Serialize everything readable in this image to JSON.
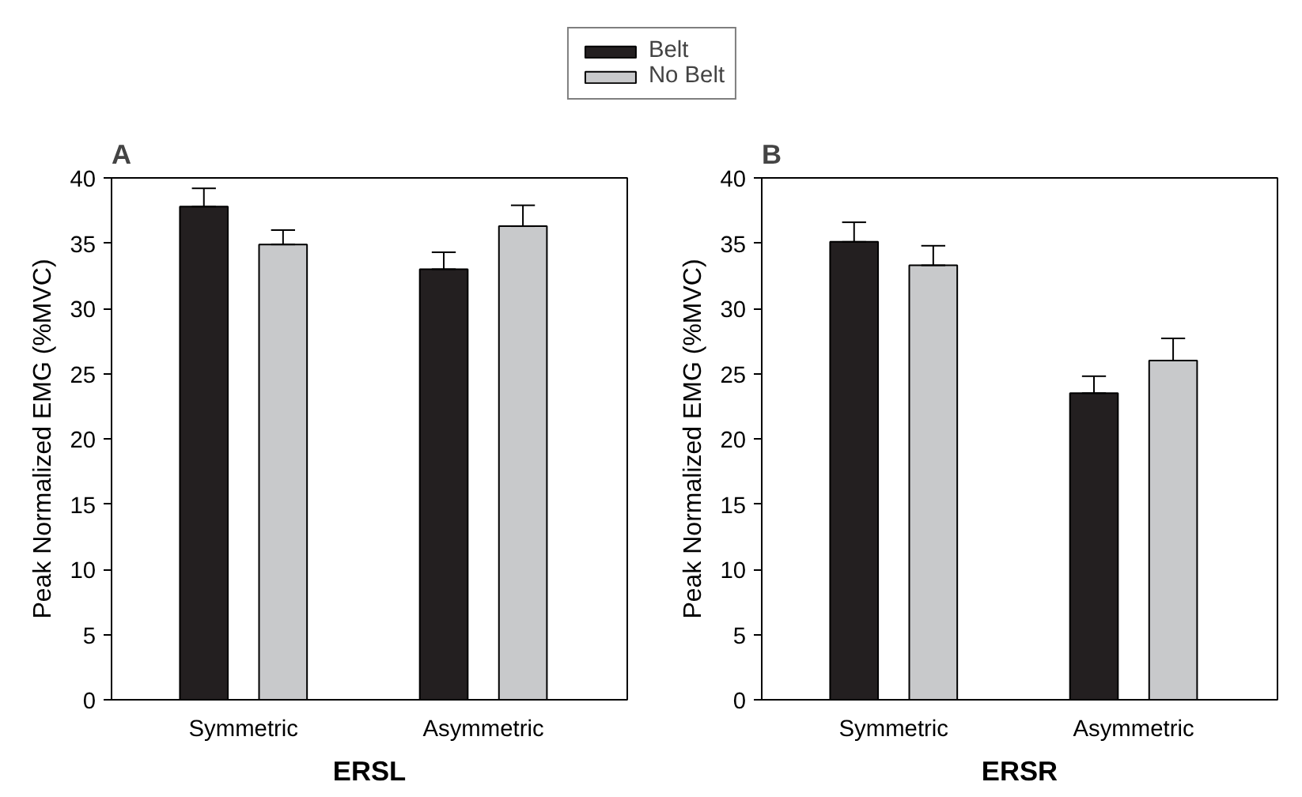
{
  "chart_data": [
    {
      "type": "bar",
      "title": "A",
      "xlabel": "ERSL",
      "ylabel": "Peak Normalized EMG (%MVC)",
      "categories": [
        "Symmetric",
        "Asymmetric"
      ],
      "ylim": [
        0,
        40
      ],
      "yticks": [
        0,
        5,
        10,
        15,
        20,
        25,
        30,
        35,
        40
      ],
      "grid": false,
      "legend": "top",
      "series": [
        {
          "name": "Belt",
          "color": "#231f20",
          "values": [
            37.8,
            33.0
          ],
          "errors": [
            [
              37.8,
              39.2
            ],
            [
              33.0,
              34.3
            ]
          ]
        },
        {
          "name": "No Belt",
          "color": "#c8c9cb",
          "values": [
            34.9,
            36.3
          ],
          "errors": [
            [
              34.9,
              36.0
            ],
            [
              36.3,
              37.9
            ]
          ]
        }
      ]
    },
    {
      "type": "bar",
      "title": "B",
      "xlabel": "ERSR",
      "ylabel": "Peak Normalized EMG (%MVC)",
      "categories": [
        "Symmetric",
        "Asymmetric"
      ],
      "ylim": [
        0,
        40
      ],
      "yticks": [
        0,
        5,
        10,
        15,
        20,
        25,
        30,
        35,
        40
      ],
      "grid": false,
      "series": [
        {
          "color": "#231f20",
          "values": [
            35.1,
            23.5
          ],
          "errors": [
            [
              35.1,
              36.6
            ],
            [
              23.5,
              24.8
            ]
          ]
        },
        {
          "color": "#c8c9cb",
          "values": [
            33.3,
            26.0
          ],
          "errors": [
            [
              33.3,
              34.8
            ],
            [
              26.0,
              27.7
            ]
          ]
        }
      ]
    }
  ]
}
